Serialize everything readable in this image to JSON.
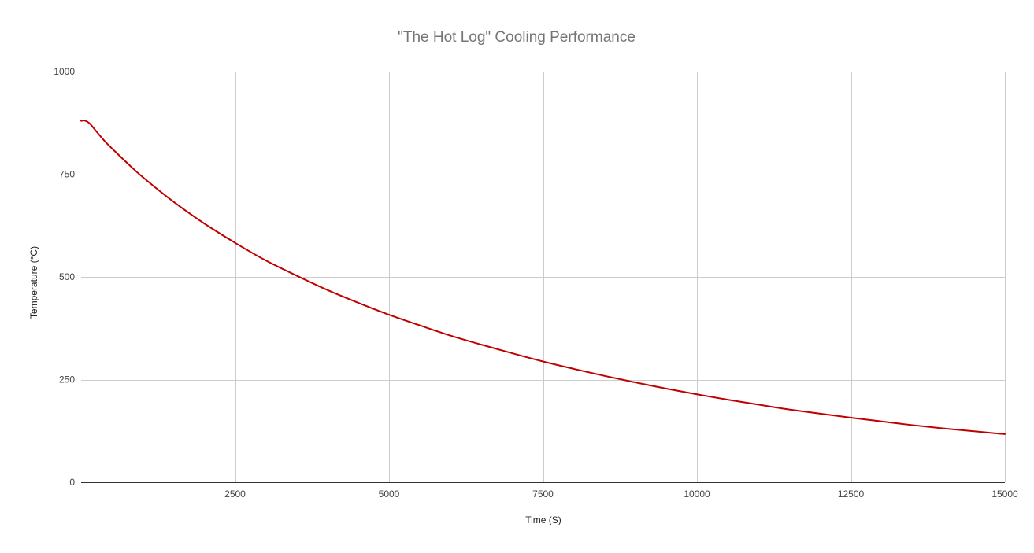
{
  "chart_data": {
    "type": "line",
    "title": "\"The Hot Log\" Cooling Performance",
    "xlabel": "Time (S)",
    "ylabel": "Temperature (°C)",
    "xlim": [
      0,
      15000
    ],
    "ylim": [
      0,
      1000
    ],
    "x_ticks": [
      "2500",
      "5000",
      "7500",
      "10000",
      "12500",
      "15000"
    ],
    "x_tick_values": [
      2500,
      5000,
      7500,
      10000,
      12500,
      15000
    ],
    "y_ticks": [
      "0",
      "250",
      "500",
      "750",
      "1000"
    ],
    "y_tick_values": [
      0,
      250,
      500,
      750,
      1000
    ],
    "grid": true,
    "legend": "none",
    "series": [
      {
        "color": "#c00000",
        "x": [
          0,
          50,
          100,
          150,
          200,
          300,
          400,
          500,
          750,
          1000,
          1500,
          2000,
          2500,
          3000,
          3500,
          4000,
          4500,
          5000,
          5500,
          6000,
          6500,
          7000,
          7500,
          8000,
          8500,
          9000,
          9500,
          10000,
          10500,
          11000,
          11500,
          12000,
          12500,
          13000,
          13500,
          14000,
          14500,
          15000
        ],
        "y": [
          880,
          881,
          878,
          872,
          863,
          845,
          828,
          813,
          777,
          743,
          683,
          630,
          583,
          540,
          503,
          468,
          437,
          408,
          382,
          357,
          335,
          314,
          294,
          276,
          259,
          243,
          228,
          214,
          201,
          189,
          177,
          167,
          157,
          148,
          139,
          131,
          124,
          117
        ]
      }
    ]
  }
}
